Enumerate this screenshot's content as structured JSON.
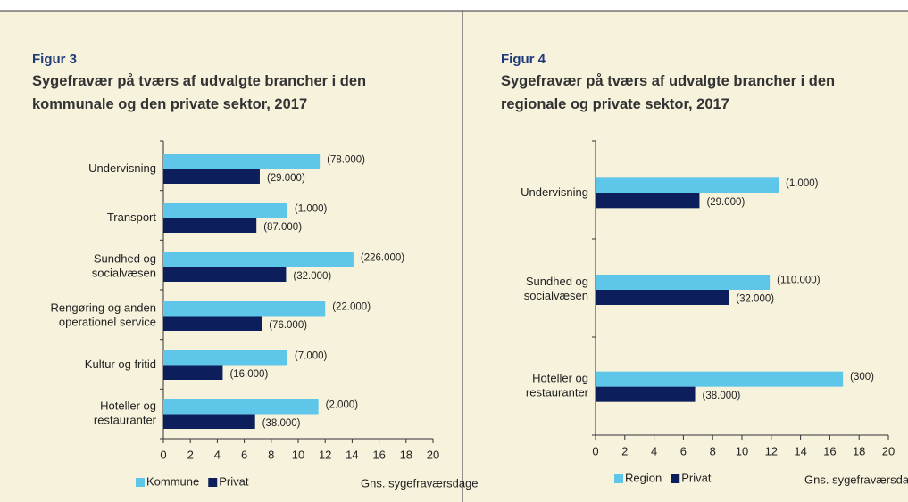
{
  "chart_data": [
    {
      "type": "bar",
      "orientation": "horizontal",
      "label": "Figur 3",
      "title": "Sygefravær på tværs af udvalgte brancher i den kommunale og den private sektor, 2017",
      "categories": [
        "Undervisning",
        "Transport",
        "Sundhed og\nsocialvæsen",
        "Rengøring og anden\noperationel service",
        "Kultur og fritid",
        "Hoteller og\nrestauranter"
      ],
      "series": [
        {
          "name": "Kommune",
          "color": "#5ec6e8",
          "values": [
            11.6,
            9.2,
            14.1,
            12.0,
            9.2,
            11.5
          ],
          "bar_labels": [
            "(78.000)",
            "(1.000)",
            "(226.000)",
            "(22.000)",
            "(7.000)",
            "(2.000)"
          ]
        },
        {
          "name": "Privat",
          "color": "#0c1f5c",
          "values": [
            7.15,
            6.9,
            9.1,
            7.3,
            4.4,
            6.8
          ],
          "bar_labels": [
            "(29.000)",
            "(87.000)",
            "(32.000)",
            "(76.000)",
            "(16.000)",
            "(38.000)"
          ]
        }
      ],
      "xlabel": "Gns. sygefraværsdage",
      "xlim": [
        0,
        20
      ],
      "xticks": [
        0,
        2,
        4,
        6,
        8,
        10,
        12,
        14,
        16,
        18,
        20
      ],
      "legend": "bottom"
    },
    {
      "type": "bar",
      "orientation": "horizontal",
      "label": "Figur 4",
      "title": "Sygefravær på tværs af udvalgte brancher i den regionale og private sektor, 2017",
      "categories": [
        "Undervisning",
        "Sundhed og\nsocialvæsen",
        "Hoteller og\nrestauranter"
      ],
      "series": [
        {
          "name": "Region",
          "color": "#5ec6e8",
          "values": [
            12.5,
            11.9,
            16.9
          ],
          "bar_labels": [
            "(1.000)",
            "(110.000)",
            "(300)"
          ]
        },
        {
          "name": "Privat",
          "color": "#0c1f5c",
          "values": [
            7.1,
            9.1,
            6.8
          ],
          "bar_labels": [
            "(29.000)",
            "(32.000)",
            "(38.000)"
          ]
        }
      ],
      "xlabel": "Gns. sygefraværsdage",
      "xlim": [
        0,
        20
      ],
      "xticks": [
        0,
        2,
        4,
        6,
        8,
        10,
        12,
        14,
        16,
        18,
        20
      ],
      "legend": "bottom"
    }
  ]
}
